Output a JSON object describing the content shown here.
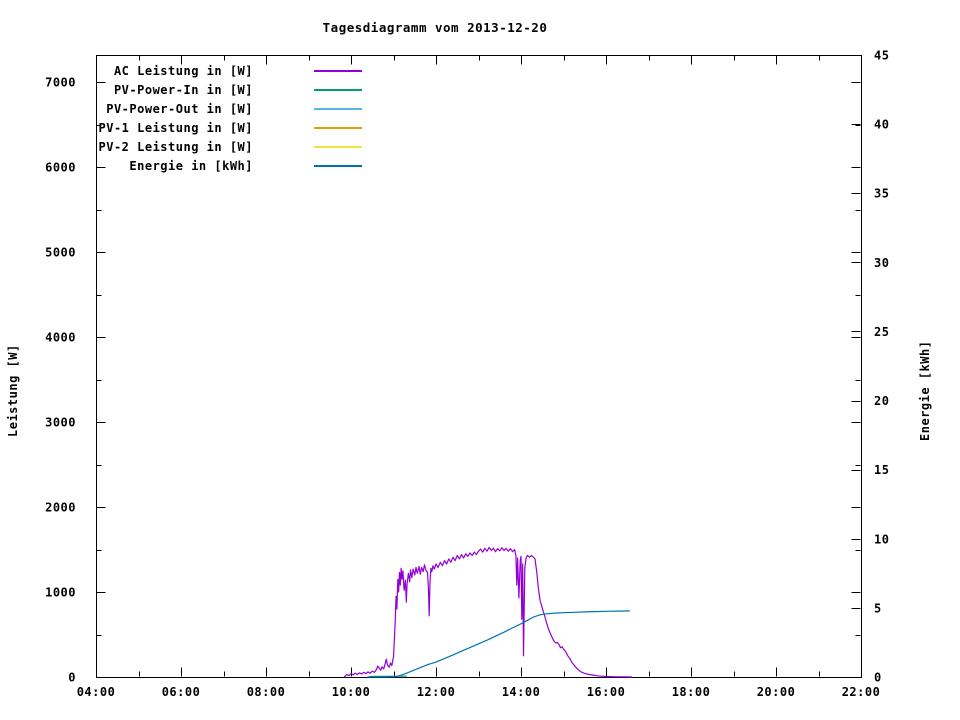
{
  "page": {
    "background": "#ffffff",
    "axis_color": "#000000"
  },
  "chart_data": {
    "type": "line",
    "title": "Tagesdiagramm vom 2013-12-20",
    "grid": false,
    "legend_position": "top-left-inside",
    "x_axis": {
      "range": [
        4,
        22
      ],
      "major_tick_hours": [
        4,
        6,
        8,
        10,
        12,
        14,
        16,
        18,
        20,
        22
      ],
      "tick_labels": [
        "04:00",
        "06:00",
        "08:00",
        "10:00",
        "12:00",
        "14:00",
        "16:00",
        "18:00",
        "20:00",
        "22:00"
      ],
      "minor_step_hours": 1
    },
    "y1_axis": {
      "label": "Leistung [W]",
      "range": [
        0,
        7320
      ],
      "major_ticks": [
        0,
        1000,
        2000,
        3000,
        4000,
        5000,
        6000,
        7000
      ],
      "tick_labels": [
        "0",
        "1000",
        "2000",
        "3000",
        "4000",
        "5000",
        "6000",
        "7000"
      ],
      "minor_step": 500
    },
    "y2_axis": {
      "label": "Energie [kWh]",
      "range": [
        0,
        45
      ],
      "major_ticks": [
        0,
        5,
        10,
        15,
        20,
        25,
        30,
        35,
        40,
        45
      ],
      "tick_labels": [
        "0",
        "5",
        "10",
        "15",
        "20",
        "25",
        "30",
        "35",
        "40",
        "45"
      ]
    },
    "series": [
      {
        "name": "AC Leistung in [W]",
        "color": "#9400d3",
        "axis": "y1",
        "points": [
          [
            9.85,
            5
          ],
          [
            9.9,
            30
          ],
          [
            9.95,
            15
          ],
          [
            10.0,
            40
          ],
          [
            10.05,
            25
          ],
          [
            10.1,
            45
          ],
          [
            10.15,
            30
          ],
          [
            10.2,
            50
          ],
          [
            10.25,
            35
          ],
          [
            10.3,
            55
          ],
          [
            10.35,
            40
          ],
          [
            10.4,
            60
          ],
          [
            10.45,
            45
          ],
          [
            10.5,
            70
          ],
          [
            10.55,
            55
          ],
          [
            10.6,
            90
          ],
          [
            10.63,
            130
          ],
          [
            10.66,
            105
          ],
          [
            10.7,
            80
          ],
          [
            10.73,
            120
          ],
          [
            10.77,
            95
          ],
          [
            10.8,
            150
          ],
          [
            10.83,
            210
          ],
          [
            10.86,
            140
          ],
          [
            10.9,
            115
          ],
          [
            10.93,
            165
          ],
          [
            10.96,
            135
          ],
          [
            11.0,
            240
          ],
          [
            11.02,
            420
          ],
          [
            11.04,
            650
          ],
          [
            11.06,
            950
          ],
          [
            11.08,
            800
          ],
          [
            11.1,
            1150
          ],
          [
            11.12,
            1000
          ],
          [
            11.14,
            1230
          ],
          [
            11.16,
            1080
          ],
          [
            11.18,
            1280
          ],
          [
            11.2,
            1150
          ],
          [
            11.22,
            1250
          ],
          [
            11.25,
            1020
          ],
          [
            11.28,
            1140
          ],
          [
            11.3,
            880
          ],
          [
            11.32,
            1100
          ],
          [
            11.35,
            1220
          ],
          [
            11.38,
            1120
          ],
          [
            11.4,
            1260
          ],
          [
            11.43,
            1170
          ],
          [
            11.46,
            1270
          ],
          [
            11.5,
            1200
          ],
          [
            11.53,
            1290
          ],
          [
            11.56,
            1220
          ],
          [
            11.6,
            1300
          ],
          [
            11.63,
            1210
          ],
          [
            11.66,
            1290
          ],
          [
            11.7,
            1240
          ],
          [
            11.73,
            1320
          ],
          [
            11.76,
            1260
          ],
          [
            11.8,
            1230
          ],
          [
            11.82,
            1050
          ],
          [
            11.84,
            720
          ],
          [
            11.86,
            1120
          ],
          [
            11.88,
            1280
          ],
          [
            11.9,
            1240
          ],
          [
            11.93,
            1310
          ],
          [
            11.96,
            1270
          ],
          [
            12.0,
            1330
          ],
          [
            12.05,
            1290
          ],
          [
            12.1,
            1350
          ],
          [
            12.15,
            1310
          ],
          [
            12.2,
            1370
          ],
          [
            12.25,
            1330
          ],
          [
            12.3,
            1390
          ],
          [
            12.35,
            1350
          ],
          [
            12.4,
            1410
          ],
          [
            12.45,
            1370
          ],
          [
            12.5,
            1430
          ],
          [
            12.55,
            1390
          ],
          [
            12.6,
            1440
          ],
          [
            12.65,
            1400
          ],
          [
            12.7,
            1450
          ],
          [
            12.75,
            1420
          ],
          [
            12.8,
            1460
          ],
          [
            12.85,
            1430
          ],
          [
            12.9,
            1470
          ],
          [
            12.95,
            1440
          ],
          [
            13.0,
            1480
          ],
          [
            13.05,
            1505
          ],
          [
            13.1,
            1470
          ],
          [
            13.15,
            1515
          ],
          [
            13.2,
            1480
          ],
          [
            13.25,
            1525
          ],
          [
            13.3,
            1490
          ],
          [
            13.35,
            1515
          ],
          [
            13.4,
            1475
          ],
          [
            13.45,
            1510
          ],
          [
            13.5,
            1485
          ],
          [
            13.55,
            1520
          ],
          [
            13.6,
            1490
          ],
          [
            13.65,
            1515
          ],
          [
            13.7,
            1480
          ],
          [
            13.75,
            1510
          ],
          [
            13.8,
            1475
          ],
          [
            13.85,
            1500
          ],
          [
            13.88,
            1430
          ],
          [
            13.9,
            1080
          ],
          [
            13.92,
            1400
          ],
          [
            13.95,
            930
          ],
          [
            13.98,
            1370
          ],
          [
            14.0,
            1420
          ],
          [
            14.02,
            680
          ],
          [
            14.04,
            1330
          ],
          [
            14.06,
            250
          ],
          [
            14.09,
            1280
          ],
          [
            14.12,
            1400
          ],
          [
            14.15,
            1430
          ],
          [
            14.2,
            1410
          ],
          [
            14.25,
            1430
          ],
          [
            14.3,
            1405
          ],
          [
            14.33,
            1390
          ],
          [
            14.37,
            1240
          ],
          [
            14.41,
            1040
          ],
          [
            14.45,
            900
          ],
          [
            14.5,
            810
          ],
          [
            14.55,
            730
          ],
          [
            14.6,
            640
          ],
          [
            14.65,
            560
          ],
          [
            14.7,
            500
          ],
          [
            14.74,
            455
          ],
          [
            14.78,
            420
          ],
          [
            14.82,
            400
          ],
          [
            14.86,
            405
          ],
          [
            14.9,
            375
          ],
          [
            14.93,
            345
          ],
          [
            14.97,
            355
          ],
          [
            15.0,
            330
          ],
          [
            15.05,
            300
          ],
          [
            15.1,
            250
          ],
          [
            15.15,
            215
          ],
          [
            15.2,
            170
          ],
          [
            15.25,
            140
          ],
          [
            15.3,
            110
          ],
          [
            15.35,
            85
          ],
          [
            15.4,
            65
          ],
          [
            15.45,
            52
          ],
          [
            15.5,
            42
          ],
          [
            15.6,
            30
          ],
          [
            15.7,
            22
          ],
          [
            15.8,
            14
          ],
          [
            15.9,
            9
          ],
          [
            16.0,
            6
          ],
          [
            16.15,
            4
          ],
          [
            16.3,
            2
          ],
          [
            16.45,
            1
          ],
          [
            16.6,
            0
          ]
        ]
      },
      {
        "name": "PV-Power-In in [W]",
        "color": "#009e73",
        "axis": "y1",
        "points": [
          [
            10.45,
            6
          ],
          [
            10.8,
            8
          ],
          [
            11.3,
            10
          ]
        ]
      },
      {
        "name": "PV-Power-Out in [W]",
        "color": "#56b4e9",
        "axis": "y1",
        "points": []
      },
      {
        "name": "PV-1 Leistung in [W]",
        "color": "#e69f00",
        "axis": "y1",
        "points": []
      },
      {
        "name": "PV-2 Leistung in [W]",
        "color": "#f0e442",
        "axis": "y1",
        "points": []
      },
      {
        "name": "Energie in [kWh]",
        "color": "#0072b2",
        "axis": "y2",
        "points": [
          [
            10.4,
            0
          ],
          [
            10.8,
            0
          ],
          [
            11.05,
            0.02
          ],
          [
            11.2,
            0.15
          ],
          [
            11.35,
            0.33
          ],
          [
            11.5,
            0.52
          ],
          [
            11.65,
            0.7
          ],
          [
            11.8,
            0.89
          ],
          [
            12.0,
            1.08
          ],
          [
            12.2,
            1.33
          ],
          [
            12.4,
            1.6
          ],
          [
            12.6,
            1.87
          ],
          [
            12.8,
            2.13
          ],
          [
            13.0,
            2.4
          ],
          [
            13.2,
            2.66
          ],
          [
            13.4,
            2.95
          ],
          [
            13.6,
            3.24
          ],
          [
            13.8,
            3.55
          ],
          [
            14.0,
            3.85
          ],
          [
            14.15,
            4.1
          ],
          [
            14.3,
            4.35
          ],
          [
            14.45,
            4.5
          ],
          [
            14.6,
            4.57
          ],
          [
            14.8,
            4.62
          ],
          [
            15.0,
            4.65
          ],
          [
            15.25,
            4.68
          ],
          [
            15.5,
            4.71
          ],
          [
            15.75,
            4.73
          ],
          [
            16.0,
            4.75
          ],
          [
            16.3,
            4.77
          ],
          [
            16.55,
            4.78
          ]
        ]
      }
    ]
  }
}
